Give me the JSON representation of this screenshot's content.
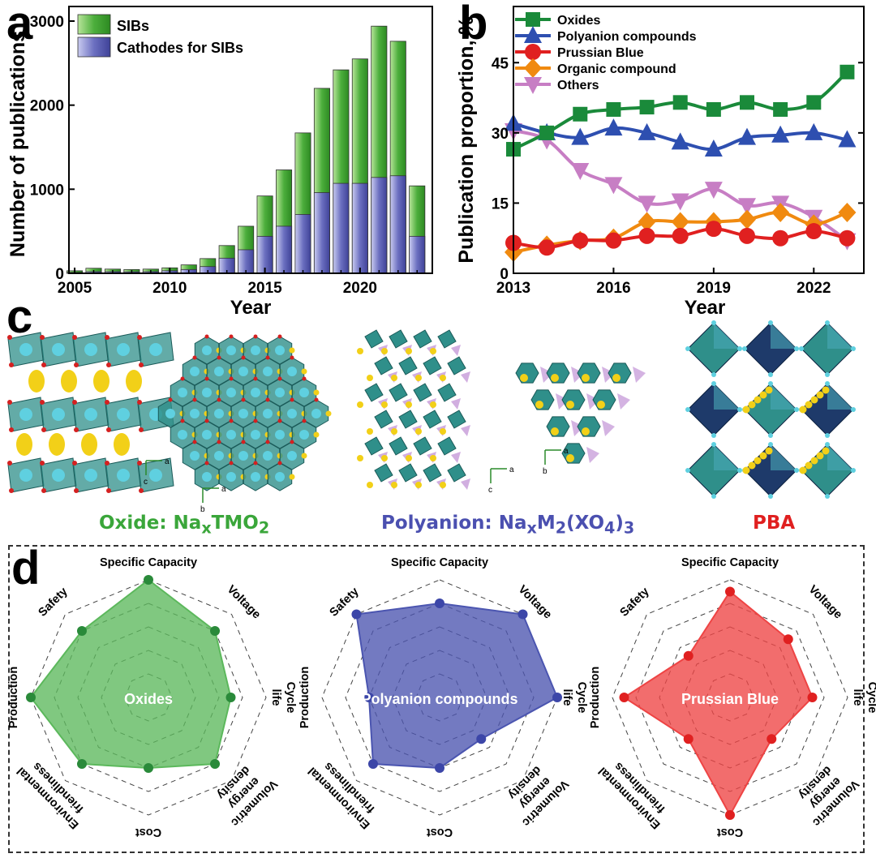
{
  "panels": {
    "a": "a",
    "b": "b",
    "c": "c",
    "d": "d"
  },
  "colors": {
    "sibs": "#4cae3c",
    "cathodes": "#6b6fc0",
    "oxides": "#1a8a3a",
    "polyanion": "#2e4fb0",
    "prussian": "#e02020",
    "organic": "#f08a10",
    "others": "#c77ec4",
    "radar_oxides": "#5cb85c",
    "radar_poly": "#4b55b0",
    "radar_pb": "#ee4444",
    "oxide_label": "#3aa63a",
    "poly_label": "#4b50b0",
    "pba_label": "#e02020"
  },
  "chart_data": [
    {
      "type": "bar",
      "title": "",
      "xlabel": "Year",
      "ylabel": "Number of publications",
      "ylim": [
        0,
        3000
      ],
      "yticks": [
        0,
        1000,
        2000,
        3000
      ],
      "xticks": [
        2005,
        2010,
        2015,
        2020
      ],
      "categories": [
        2005,
        2006,
        2007,
        2008,
        2009,
        2010,
        2011,
        2012,
        2013,
        2014,
        2015,
        2016,
        2017,
        2018,
        2019,
        2020,
        2021,
        2022,
        2023
      ],
      "series": [
        {
          "name": "SIBs",
          "values": [
            30,
            60,
            50,
            45,
            50,
            65,
            100,
            175,
            330,
            560,
            920,
            1230,
            1670,
            2200,
            2420,
            2550,
            2940,
            2760,
            1040
          ]
        },
        {
          "name": "Cathodes for SIBs",
          "values": [
            10,
            20,
            20,
            18,
            20,
            30,
            45,
            80,
            180,
            280,
            440,
            560,
            700,
            960,
            1070,
            1070,
            1140,
            1160,
            440
          ]
        }
      ],
      "legend": [
        "SIBs",
        "Cathodes for SIBs"
      ]
    },
    {
      "type": "line",
      "xlabel": "Year",
      "ylabel": "Publication proportion, %",
      "xlim": [
        2013,
        2023.5
      ],
      "ylim": [
        0,
        57
      ],
      "xticks": [
        2013,
        2016,
        2019,
        2022
      ],
      "yticks": [
        0,
        15,
        30,
        45
      ],
      "x": [
        2013,
        2014,
        2015,
        2016,
        2017,
        2018,
        2019,
        2020,
        2021,
        2022,
        2023
      ],
      "series": [
        {
          "name": "Oxides",
          "marker": "square",
          "values": [
            26.5,
            30,
            34,
            35,
            35.5,
            36.5,
            35,
            36.5,
            35,
            36.5,
            43
          ]
        },
        {
          "name": "Polyanion compounds",
          "marker": "triangle-up",
          "values": [
            32,
            30,
            29,
            31,
            30,
            28,
            26.5,
            29,
            29.5,
            30,
            28.5
          ]
        },
        {
          "name": "Prussian Blue",
          "marker": "circle",
          "values": [
            6.5,
            5.5,
            7,
            7,
            8,
            8,
            9.5,
            8,
            7.5,
            9,
            7.5
          ]
        },
        {
          "name": "Organic compound",
          "marker": "diamond",
          "values": [
            4.5,
            6,
            7,
            7.5,
            11,
            11,
            11,
            11.5,
            13,
            10.5,
            13
          ]
        },
        {
          "name": "Others",
          "marker": "triangle-down",
          "values": [
            30.5,
            28.5,
            22,
            19,
            15,
            15.5,
            18,
            14.5,
            15,
            12,
            7
          ]
        }
      ]
    },
    {
      "type": "radar",
      "axes": [
        "Specific Capacity",
        "Voltage",
        "Cycle life",
        "Volumetric energy density",
        "Cost",
        "Environmental friendliness",
        "Production",
        "Safety"
      ],
      "scale": [
        0,
        5
      ],
      "series": [
        {
          "name": "Oxides",
          "values": [
            5,
            4,
            3.5,
            4,
            3,
            4,
            5,
            4
          ]
        },
        {
          "name": "Polyanion compounds",
          "values": [
            4,
            5,
            5,
            2.5,
            3,
            4,
            3,
            5
          ]
        },
        {
          "name": "Prussian Blue",
          "values": [
            4.5,
            3.5,
            3.5,
            2.5,
            5,
            2.5,
            4.5,
            2.5
          ]
        }
      ]
    }
  ],
  "structures": {
    "oxide_html": "Oxide: Na<sub>x</sub>TMO<sub>2</sub>",
    "poly_html": "Polyanion: Na<sub>x</sub>M<sub>2</sub>(XO<sub>4</sub>)<sub>3</sub>",
    "pba": "PBA",
    "axis_a": "a",
    "axis_b": "b",
    "axis_c": "c"
  }
}
